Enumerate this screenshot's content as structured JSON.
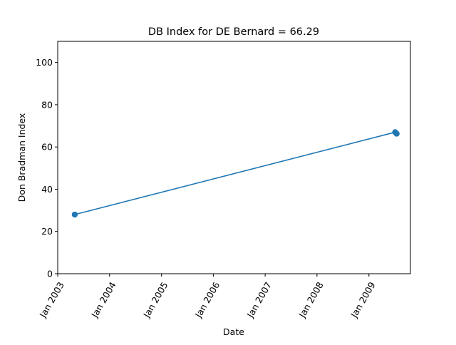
{
  "chart_data": {
    "type": "line",
    "title": "DB Index for DE Bernard = 66.29",
    "xlabel": "Date",
    "ylabel": "Don Bradman Index",
    "x_ticks": [
      "Jan 2003",
      "Jan 2004",
      "Jan 2005",
      "Jan 2006",
      "Jan 2007",
      "Jan 2008",
      "Jan 2009"
    ],
    "y_ticks": [
      "0",
      "20",
      "40",
      "60",
      "80",
      "100"
    ],
    "ylim": [
      0,
      110
    ],
    "xlim": [
      "2003-01-01",
      "2009-10-20"
    ],
    "series": [
      {
        "color": "#1f77b4",
        "points": [
          {
            "date": "2003-05-01",
            "value": 28
          },
          {
            "date": "2009-07-05",
            "value": 67
          },
          {
            "date": "2009-07-15",
            "value": 66.29
          }
        ]
      }
    ],
    "grid": false,
    "marker": "circle"
  }
}
